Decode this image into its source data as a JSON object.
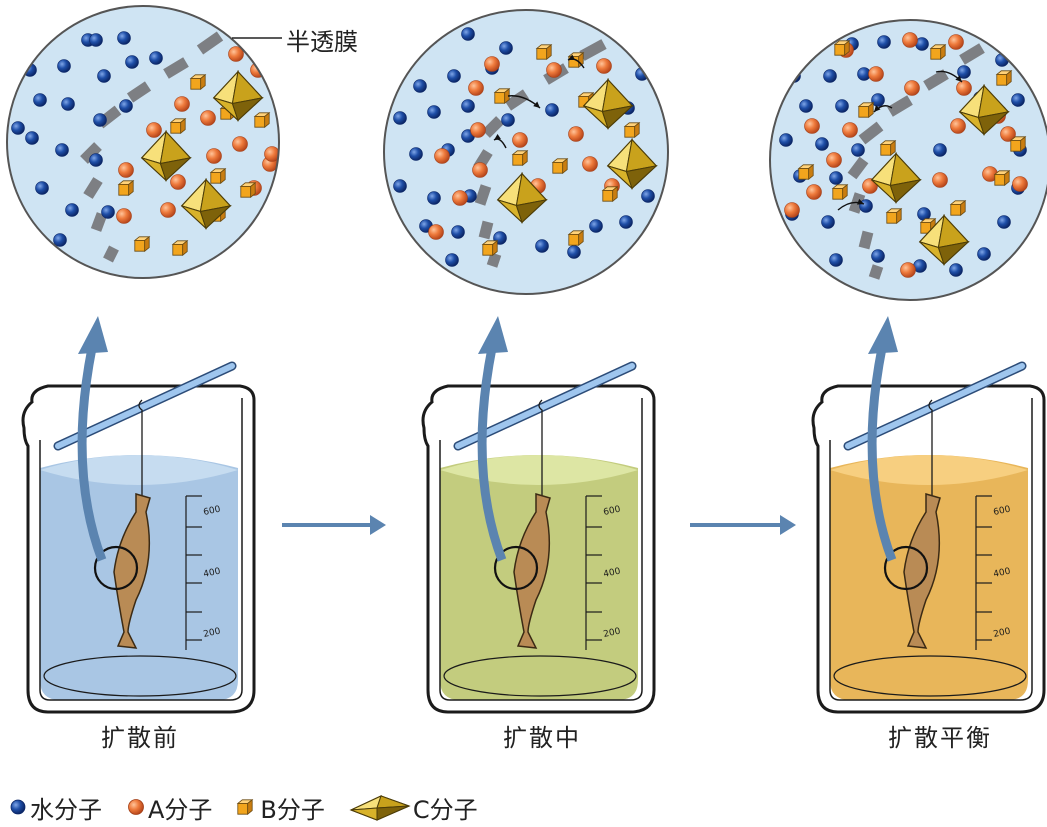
{
  "membrane_label": "半透膜",
  "stages": [
    {
      "label": "扩散前",
      "liquid_color": "#a9c6e4",
      "liquid_top_color": "#c6dcf0"
    },
    {
      "label": "扩散中",
      "liquid_color": "#c3cc7e",
      "liquid_top_color": "#dde6a4"
    },
    {
      "label": "扩散平衡",
      "liquid_color": "#e8b65a",
      "liquid_top_color": "#f7cf80"
    }
  ],
  "legend": [
    {
      "label": "水分子",
      "icon": "water-molecule-icon"
    },
    {
      "label": "A分子",
      "icon": "a-molecule-icon"
    },
    {
      "label": "B分子",
      "icon": "b-molecule-icon"
    },
    {
      "label": "C分子",
      "icon": "c-molecule-icon"
    }
  ],
  "scale_ticks": [
    "600",
    "400",
    "200"
  ],
  "colors": {
    "water": "#1f4fa8",
    "a_molecule": "#e8703a",
    "b_molecule": "#f0a21e",
    "c_molecule": "#c9a21c",
    "membrane": "#7d7f83",
    "circle_bg": "#cfe4f3",
    "arrow": "#5b84b0",
    "bag": "#b98b55"
  }
}
